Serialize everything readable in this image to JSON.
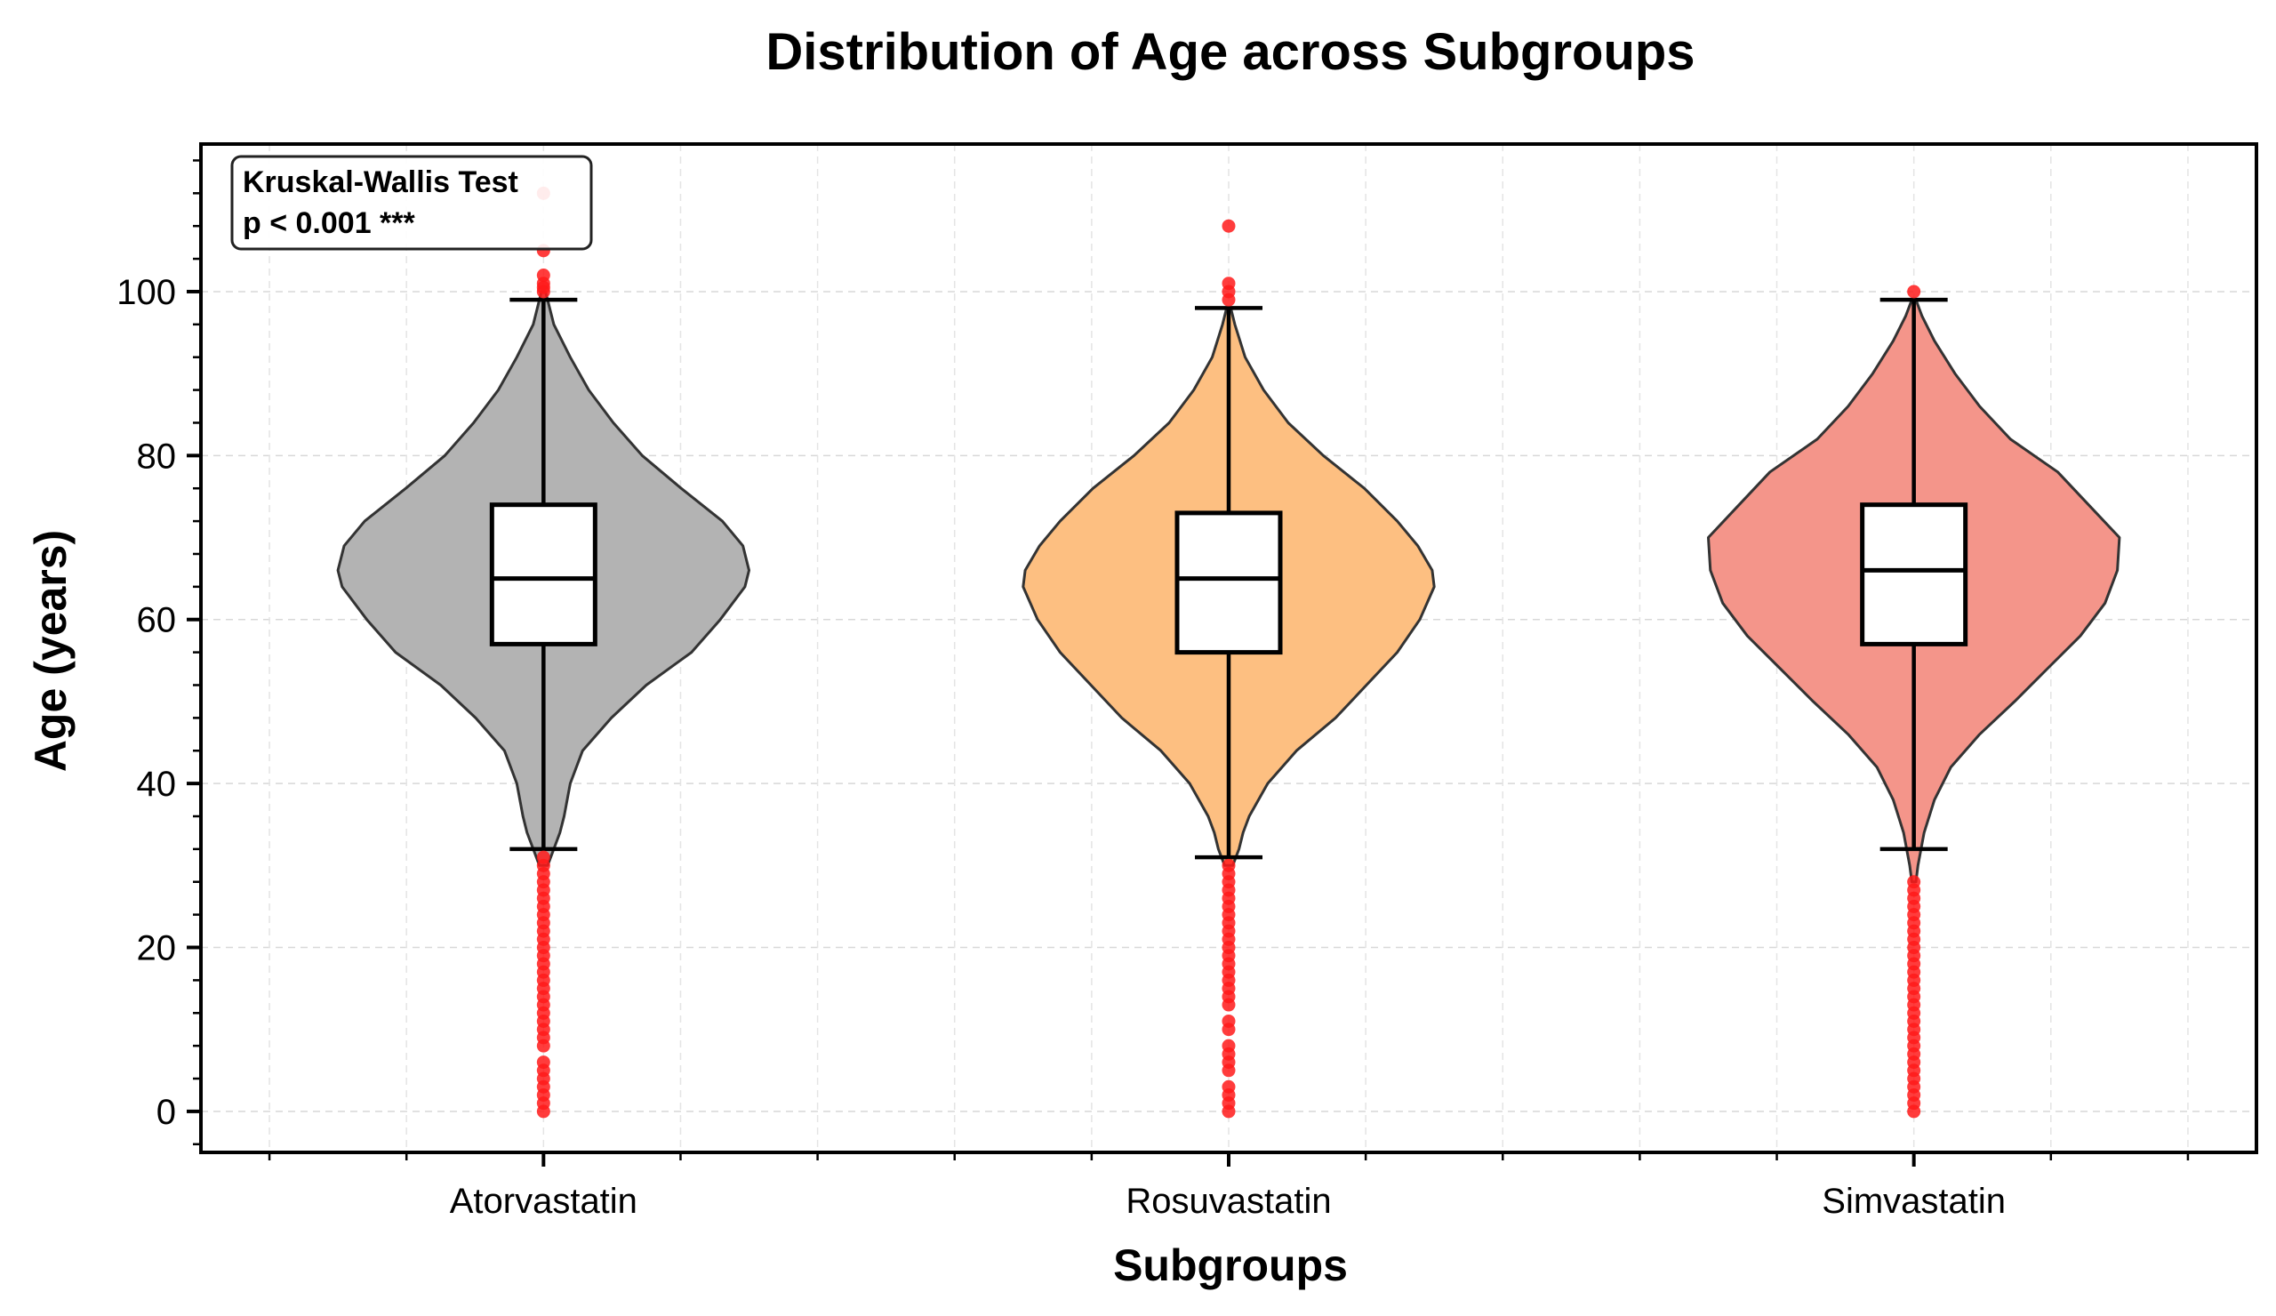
{
  "chart_data": {
    "type": "violin",
    "title": "Distribution of Age across Subgroups",
    "xlabel": "Subgroups",
    "ylabel": "Age (years)",
    "ylim": [
      -5,
      118
    ],
    "yticks": [
      0,
      20,
      40,
      60,
      80,
      100
    ],
    "grid": true,
    "annotation": {
      "line1": "Kruskal-Wallis Test",
      "line2": "p < 0.001 ***",
      "placement": "top-left"
    },
    "groups": [
      {
        "name": "Atorvastatin",
        "color": "#b3b3b3",
        "min": 32,
        "q1": 57,
        "median": 65,
        "q3": 74,
        "max": 99,
        "violin_min": 30,
        "violin_max": 100,
        "density": [
          [
            30,
            0.02
          ],
          [
            32,
            0.05
          ],
          [
            34,
            0.08
          ],
          [
            36,
            0.1
          ],
          [
            40,
            0.13
          ],
          [
            44,
            0.19
          ],
          [
            48,
            0.33
          ],
          [
            52,
            0.5
          ],
          [
            56,
            0.72
          ],
          [
            60,
            0.86
          ],
          [
            64,
            0.98
          ],
          [
            66,
            1.0
          ],
          [
            69,
            0.97
          ],
          [
            72,
            0.87
          ],
          [
            76,
            0.67
          ],
          [
            80,
            0.48
          ],
          [
            84,
            0.34
          ],
          [
            88,
            0.22
          ],
          [
            92,
            0.13
          ],
          [
            96,
            0.05
          ],
          [
            100,
            0.01
          ]
        ],
        "outliers": [
          0,
          1,
          2,
          3,
          4,
          5,
          6,
          8,
          9,
          10,
          11,
          12,
          13,
          14,
          15,
          16,
          17,
          18,
          19,
          20,
          21,
          22,
          23,
          24,
          25,
          26,
          27,
          28,
          29,
          30,
          31,
          100,
          100.5,
          101,
          102,
          105,
          112
        ]
      },
      {
        "name": "Rosuvastatin",
        "color": "#fdbf81",
        "min": 31,
        "q1": 56,
        "median": 65,
        "q3": 73,
        "max": 98,
        "violin_min": 30,
        "violin_max": 98,
        "density": [
          [
            30,
            0.02
          ],
          [
            32,
            0.05
          ],
          [
            34,
            0.07
          ],
          [
            36,
            0.1
          ],
          [
            40,
            0.19
          ],
          [
            44,
            0.33
          ],
          [
            48,
            0.52
          ],
          [
            52,
            0.67
          ],
          [
            56,
            0.82
          ],
          [
            60,
            0.93
          ],
          [
            64,
            1.0
          ],
          [
            66,
            0.99
          ],
          [
            69,
            0.92
          ],
          [
            72,
            0.82
          ],
          [
            76,
            0.66
          ],
          [
            80,
            0.46
          ],
          [
            84,
            0.29
          ],
          [
            88,
            0.17
          ],
          [
            92,
            0.08
          ],
          [
            96,
            0.03
          ],
          [
            98,
            0.01
          ]
        ],
        "outliers": [
          0,
          1,
          2,
          3,
          5,
          6,
          7,
          8,
          10,
          11,
          13,
          14,
          15,
          16,
          17,
          18,
          19,
          20,
          21,
          22,
          23,
          24,
          25,
          26,
          27,
          28,
          29,
          30,
          99,
          100,
          101,
          108
        ]
      },
      {
        "name": "Simvastatin",
        "color": "#f4958a",
        "min": 32,
        "q1": 57,
        "median": 66,
        "q3": 74,
        "max": 99,
        "violin_min": 28,
        "violin_max": 99,
        "density": [
          [
            28,
            0.01
          ],
          [
            30,
            0.02
          ],
          [
            34,
            0.05
          ],
          [
            38,
            0.1
          ],
          [
            42,
            0.18
          ],
          [
            46,
            0.32
          ],
          [
            50,
            0.49
          ],
          [
            54,
            0.65
          ],
          [
            58,
            0.81
          ],
          [
            62,
            0.93
          ],
          [
            66,
            0.99
          ],
          [
            70,
            1.0
          ],
          [
            74,
            0.85
          ],
          [
            78,
            0.7
          ],
          [
            82,
            0.47
          ],
          [
            86,
            0.32
          ],
          [
            90,
            0.2
          ],
          [
            94,
            0.1
          ],
          [
            97,
            0.04
          ],
          [
            99,
            0.01
          ]
        ],
        "outliers": [
          0,
          1,
          2,
          3,
          4,
          5,
          6,
          7,
          8,
          9,
          10,
          11,
          12,
          13,
          14,
          15,
          16,
          17,
          18,
          19,
          20,
          21,
          22,
          23,
          24,
          25,
          26,
          27,
          28,
          100
        ]
      }
    ]
  }
}
